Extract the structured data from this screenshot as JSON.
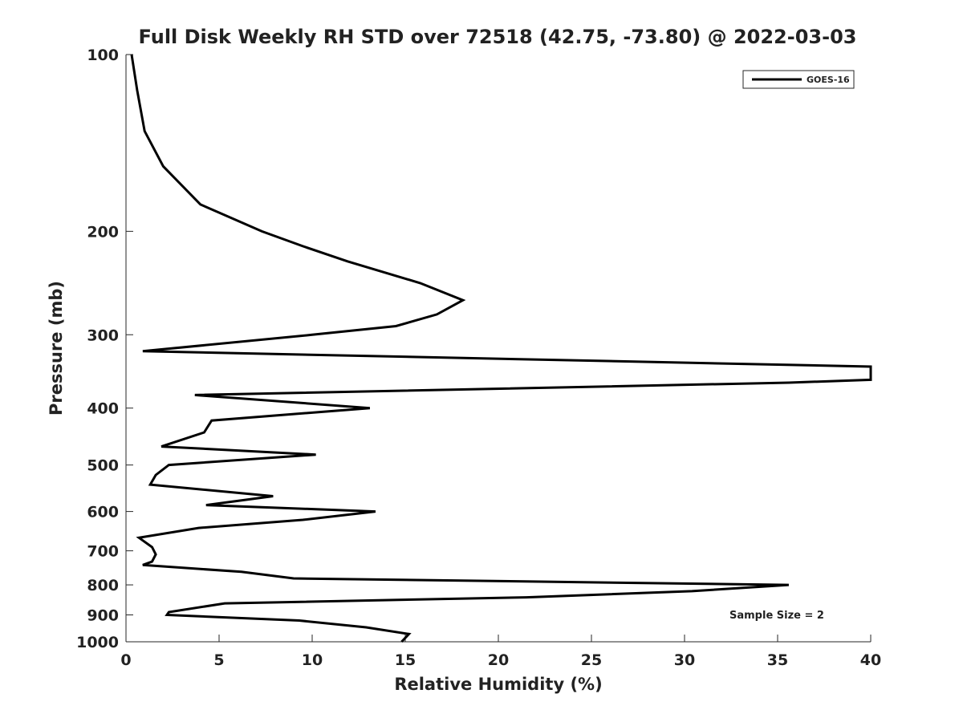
{
  "chart_data": {
    "type": "line",
    "title": "Full Disk Weekly RH STD over 72518 (42.75, -73.80) @ 2022-03-03",
    "xlabel": "Relative Humidity (%)",
    "ylabel": "Pressure (mb)",
    "xlim": [
      0,
      40
    ],
    "ylim": [
      1000,
      100
    ],
    "yscale": "log",
    "grid": false,
    "xticks": [
      "0",
      "5",
      "10",
      "15",
      "20",
      "25",
      "30",
      "35",
      "40"
    ],
    "yticks": [
      "100",
      "200",
      "300",
      "400",
      "500",
      "600",
      "700",
      "800",
      "900",
      "1000"
    ],
    "legend": {
      "position": "top-right",
      "entries": [
        "GOES-16"
      ]
    },
    "annotation": "Sample Size = 2",
    "series": [
      {
        "name": "GOES-16",
        "color": "#000000",
        "points": [
          [
            0.3,
            100
          ],
          [
            0.6,
            115
          ],
          [
            1.0,
            135
          ],
          [
            2.0,
            155
          ],
          [
            4.0,
            180
          ],
          [
            7.3,
            200
          ],
          [
            9.5,
            212
          ],
          [
            11.9,
            225
          ],
          [
            15.8,
            245
          ],
          [
            18.1,
            262
          ],
          [
            16.7,
            277
          ],
          [
            14.5,
            290
          ],
          [
            10.0,
            300
          ],
          [
            0.9,
            320
          ],
          [
            40,
            340
          ],
          [
            40,
            358
          ],
          [
            35.6,
            362
          ],
          [
            3.7,
            380
          ],
          [
            13.1,
            400
          ],
          [
            4.6,
            420
          ],
          [
            4.2,
            440
          ],
          [
            1.9,
            465
          ],
          [
            10.2,
            480
          ],
          [
            2.3,
            500
          ],
          [
            1.6,
            520
          ],
          [
            1.3,
            540
          ],
          [
            7.9,
            565
          ],
          [
            4.3,
            585
          ],
          [
            13.4,
            600
          ],
          [
            9.5,
            620
          ],
          [
            3.9,
            640
          ],
          [
            0.7,
            665
          ],
          [
            1.4,
            690
          ],
          [
            1.6,
            710
          ],
          [
            1.4,
            730
          ],
          [
            0.9,
            740
          ],
          [
            6.2,
            760
          ],
          [
            9.0,
            780
          ],
          [
            35.6,
            800
          ],
          [
            30.4,
            820
          ],
          [
            21.5,
            840
          ],
          [
            5.3,
            860
          ],
          [
            2.3,
            890
          ],
          [
            2.2,
            900
          ],
          [
            9.3,
            920
          ],
          [
            12.9,
            945
          ],
          [
            15.2,
            970
          ],
          [
            14.8,
            1000
          ]
        ]
      }
    ]
  }
}
